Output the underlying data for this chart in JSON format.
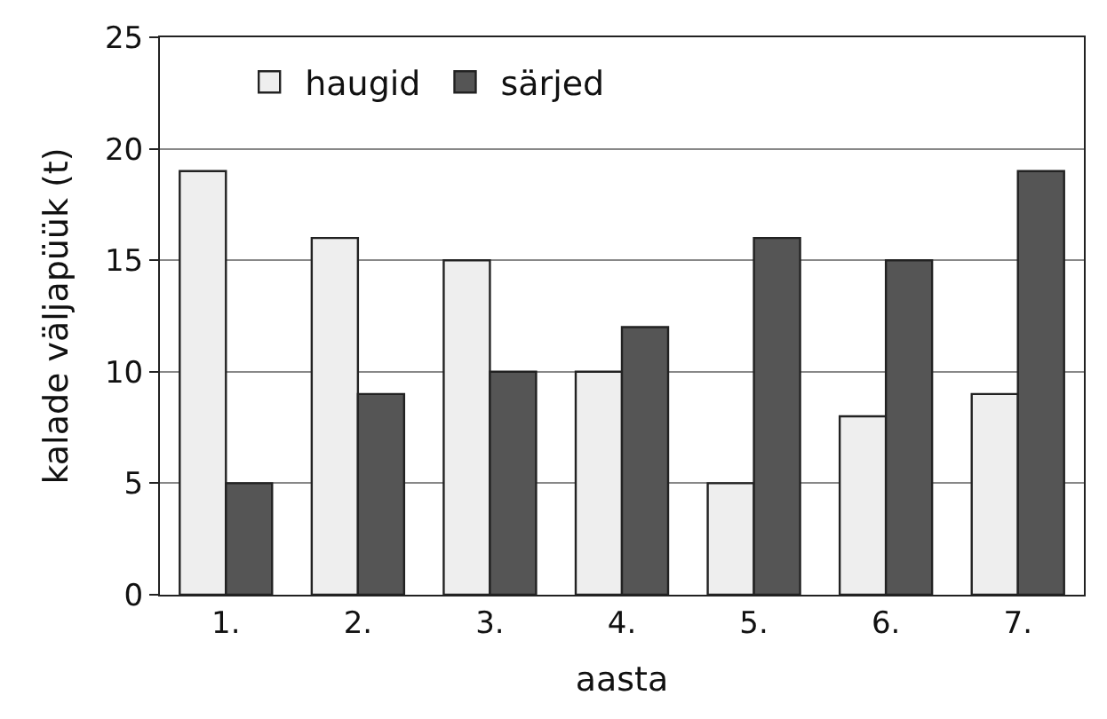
{
  "chart_data": {
    "type": "bar",
    "xlabel": "aasta",
    "ylabel": "kalade väljapüük (t)",
    "categories": [
      "1.",
      "2.",
      "3.",
      "4.",
      "5.",
      "6.",
      "7."
    ],
    "series": [
      {
        "name": "haugid",
        "color": "#eeeeee",
        "values": [
          19,
          16,
          15,
          10,
          5,
          8,
          9
        ]
      },
      {
        "name": "särjed",
        "color": "#555555",
        "values": [
          5,
          9,
          10,
          12,
          16,
          15,
          19
        ]
      }
    ],
    "ylim": [
      0,
      25
    ],
    "yticks": [
      0,
      5,
      10,
      15,
      20,
      25
    ],
    "grid": "y",
    "legend": "top left"
  }
}
